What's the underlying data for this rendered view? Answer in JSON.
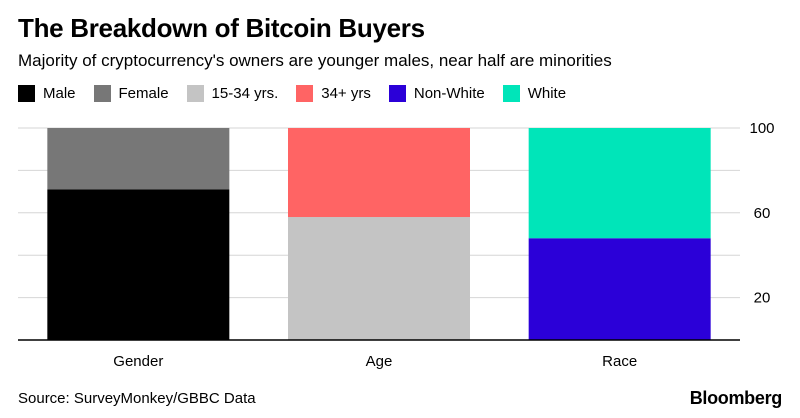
{
  "header": {
    "title": "The Breakdown of Bitcoin Buyers",
    "subtitle": "Majority of cryptocurrency's owners are younger males, near half are minorities"
  },
  "legend": [
    {
      "label": "Male",
      "color": "#000000"
    },
    {
      "label": "Female",
      "color": "#777777"
    },
    {
      "label": "15-34 yrs.",
      "color": "#c4c4c4"
    },
    {
      "label": "34+ yrs",
      "color": "#ff6464"
    },
    {
      "label": "Non-White",
      "color": "#2b00d8"
    },
    {
      "label": "White",
      "color": "#00e5b9"
    }
  ],
  "chart_data": {
    "type": "bar",
    "stacked": true,
    "categories": [
      "Gender",
      "Age",
      "Race"
    ],
    "groups": [
      {
        "category": "Gender",
        "segments": [
          {
            "name": "Male",
            "value": 71,
            "color": "#000000"
          },
          {
            "name": "Female",
            "value": 29,
            "color": "#777777"
          }
        ]
      },
      {
        "category": "Age",
        "segments": [
          {
            "name": "15-34 yrs.",
            "value": 58,
            "color": "#c4c4c4"
          },
          {
            "name": "34+ yrs",
            "value": 42,
            "color": "#ff6464"
          }
        ]
      },
      {
        "category": "Race",
        "segments": [
          {
            "name": "Non-White",
            "value": 48,
            "color": "#2b00d8"
          },
          {
            "name": "White",
            "value": 52,
            "color": "#00e5b9"
          }
        ]
      }
    ],
    "ylim": [
      0,
      100
    ],
    "yticks": [
      20,
      60,
      100
    ],
    "gridlines": [
      20,
      40,
      60,
      80,
      100
    ],
    "y_axis_side": "right",
    "grid": true,
    "legend_position": "top-left",
    "title": "The Breakdown of Bitcoin Buyers",
    "xlabel": "",
    "ylabel": ""
  },
  "footer": {
    "source": "Source: SurveyMonkey/GBBC Data",
    "brand": "Bloomberg"
  }
}
